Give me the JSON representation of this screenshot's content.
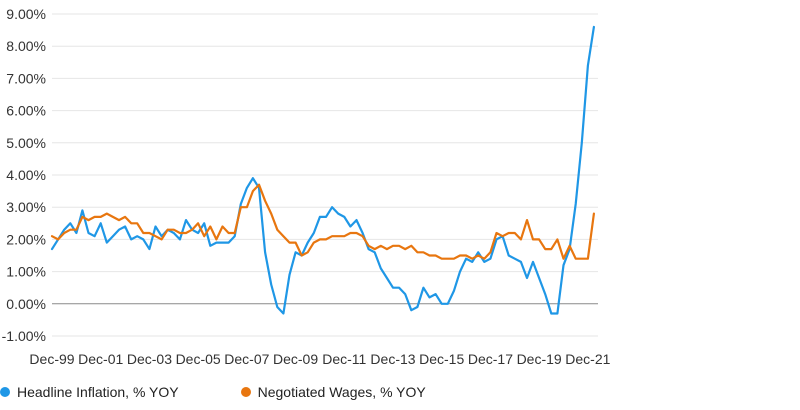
{
  "chart_data": {
    "type": "line",
    "title": "",
    "xlabel": "",
    "ylabel": "",
    "ylim": [
      -1.0,
      9.0
    ],
    "xlim": [
      "1999-12",
      "2022-05"
    ],
    "y_ticks": [
      "-1.00%",
      "0.00%",
      "1.00%",
      "2.00%",
      "3.00%",
      "4.00%",
      "5.00%",
      "6.00%",
      "7.00%",
      "8.00%",
      "9.00%"
    ],
    "x_ticks": [
      "Dec-99",
      "Dec-01",
      "Dec-03",
      "Dec-05",
      "Dec-07",
      "Dec-09",
      "Dec-11",
      "Dec-13",
      "Dec-15",
      "Dec-17",
      "Dec-19",
      "Dec-21"
    ],
    "grid": "horizontal",
    "legend": "bottom",
    "colors": {
      "inflation": "#1f97e6",
      "wages": "#e8760f"
    },
    "series": [
      {
        "name": "Headline Inflation, % YOY",
        "color": "#1f97e6",
        "points": [
          [
            "1999-12",
            1.7
          ],
          [
            "2000-03",
            2.0
          ],
          [
            "2000-06",
            2.3
          ],
          [
            "2000-09",
            2.5
          ],
          [
            "2000-12",
            2.2
          ],
          [
            "2001-03",
            2.9
          ],
          [
            "2001-06",
            2.2
          ],
          [
            "2001-09",
            2.1
          ],
          [
            "2001-12",
            2.5
          ],
          [
            "2002-03",
            1.9
          ],
          [
            "2002-06",
            2.1
          ],
          [
            "2002-09",
            2.3
          ],
          [
            "2002-12",
            2.4
          ],
          [
            "2003-03",
            2.0
          ],
          [
            "2003-06",
            2.1
          ],
          [
            "2003-09",
            2.0
          ],
          [
            "2003-12",
            1.7
          ],
          [
            "2004-03",
            2.4
          ],
          [
            "2004-06",
            2.1
          ],
          [
            "2004-09",
            2.3
          ],
          [
            "2004-12",
            2.2
          ],
          [
            "2005-03",
            2.0
          ],
          [
            "2005-06",
            2.6
          ],
          [
            "2005-09",
            2.3
          ],
          [
            "2005-12",
            2.2
          ],
          [
            "2006-03",
            2.5
          ],
          [
            "2006-06",
            1.8
          ],
          [
            "2006-09",
            1.9
          ],
          [
            "2006-12",
            1.9
          ],
          [
            "2007-03",
            1.9
          ],
          [
            "2007-06",
            2.1
          ],
          [
            "2007-09",
            3.1
          ],
          [
            "2007-12",
            3.6
          ],
          [
            "2008-03",
            3.9
          ],
          [
            "2008-06",
            3.6
          ],
          [
            "2008-09",
            1.6
          ],
          [
            "2008-12",
            0.6
          ],
          [
            "2009-03",
            -0.1
          ],
          [
            "2009-06",
            -0.3
          ],
          [
            "2009-09",
            0.9
          ],
          [
            "2009-12",
            1.6
          ],
          [
            "2010-03",
            1.5
          ],
          [
            "2010-06",
            1.9
          ],
          [
            "2010-09",
            2.2
          ],
          [
            "2010-12",
            2.7
          ],
          [
            "2011-03",
            2.7
          ],
          [
            "2011-06",
            3.0
          ],
          [
            "2011-09",
            2.8
          ],
          [
            "2011-12",
            2.7
          ],
          [
            "2012-03",
            2.4
          ],
          [
            "2012-06",
            2.6
          ],
          [
            "2012-09",
            2.2
          ],
          [
            "2012-12",
            1.7
          ],
          [
            "2013-03",
            1.6
          ],
          [
            "2013-06",
            1.1
          ],
          [
            "2013-09",
            0.8
          ],
          [
            "2013-12",
            0.5
          ],
          [
            "2014-03",
            0.5
          ],
          [
            "2014-06",
            0.3
          ],
          [
            "2014-09",
            -0.2
          ],
          [
            "2014-12",
            -0.1
          ],
          [
            "2015-03",
            0.5
          ],
          [
            "2015-06",
            0.2
          ],
          [
            "2015-09",
            0.3
          ],
          [
            "2015-12",
            0.0
          ],
          [
            "2016-03",
            0.0
          ],
          [
            "2016-06",
            0.4
          ],
          [
            "2016-09",
            1.0
          ],
          [
            "2016-12",
            1.4
          ],
          [
            "2017-03",
            1.3
          ],
          [
            "2017-06",
            1.6
          ],
          [
            "2017-09",
            1.3
          ],
          [
            "2017-12",
            1.4
          ],
          [
            "2018-03",
            2.0
          ],
          [
            "2018-06",
            2.1
          ],
          [
            "2018-09",
            1.5
          ],
          [
            "2018-12",
            1.4
          ],
          [
            "2019-03",
            1.3
          ],
          [
            "2019-06",
            0.8
          ],
          [
            "2019-09",
            1.3
          ],
          [
            "2019-12",
            0.8
          ],
          [
            "2020-03",
            0.3
          ],
          [
            "2020-06",
            -0.3
          ],
          [
            "2020-09",
            -0.3
          ],
          [
            "2020-12",
            1.2
          ],
          [
            "2021-03",
            1.7
          ],
          [
            "2021-06",
            3.1
          ],
          [
            "2021-09",
            5.0
          ],
          [
            "2021-12",
            7.4
          ],
          [
            "2022-03",
            8.6
          ]
        ]
      },
      {
        "name": "Negotiated Wages, % YOY",
        "color": "#e8760f",
        "points": [
          [
            "1999-12",
            2.1
          ],
          [
            "2000-03",
            2.0
          ],
          [
            "2000-06",
            2.2
          ],
          [
            "2000-09",
            2.3
          ],
          [
            "2000-12",
            2.3
          ],
          [
            "2001-03",
            2.7
          ],
          [
            "2001-06",
            2.6
          ],
          [
            "2001-09",
            2.7
          ],
          [
            "2001-12",
            2.7
          ],
          [
            "2002-03",
            2.8
          ],
          [
            "2002-06",
            2.7
          ],
          [
            "2002-09",
            2.6
          ],
          [
            "2002-12",
            2.7
          ],
          [
            "2003-03",
            2.5
          ],
          [
            "2003-06",
            2.5
          ],
          [
            "2003-09",
            2.2
          ],
          [
            "2003-12",
            2.2
          ],
          [
            "2004-03",
            2.1
          ],
          [
            "2004-06",
            2.0
          ],
          [
            "2004-09",
            2.3
          ],
          [
            "2004-12",
            2.3
          ],
          [
            "2005-03",
            2.2
          ],
          [
            "2005-06",
            2.2
          ],
          [
            "2005-09",
            2.3
          ],
          [
            "2005-12",
            2.5
          ],
          [
            "2006-03",
            2.1
          ],
          [
            "2006-06",
            2.4
          ],
          [
            "2006-09",
            2.0
          ],
          [
            "2006-12",
            2.4
          ],
          [
            "2007-03",
            2.2
          ],
          [
            "2007-06",
            2.2
          ],
          [
            "2007-09",
            3.0
          ],
          [
            "2007-12",
            3.0
          ],
          [
            "2008-03",
            3.5
          ],
          [
            "2008-06",
            3.7
          ],
          [
            "2008-09",
            3.2
          ],
          [
            "2008-12",
            2.8
          ],
          [
            "2009-03",
            2.3
          ],
          [
            "2009-06",
            2.1
          ],
          [
            "2009-09",
            1.9
          ],
          [
            "2009-12",
            1.9
          ],
          [
            "2010-03",
            1.5
          ],
          [
            "2010-06",
            1.6
          ],
          [
            "2010-09",
            1.9
          ],
          [
            "2010-12",
            2.0
          ],
          [
            "2011-03",
            2.0
          ],
          [
            "2011-06",
            2.1
          ],
          [
            "2011-09",
            2.1
          ],
          [
            "2011-12",
            2.1
          ],
          [
            "2012-03",
            2.2
          ],
          [
            "2012-06",
            2.2
          ],
          [
            "2012-09",
            2.1
          ],
          [
            "2012-12",
            1.8
          ],
          [
            "2013-03",
            1.7
          ],
          [
            "2013-06",
            1.8
          ],
          [
            "2013-09",
            1.7
          ],
          [
            "2013-12",
            1.8
          ],
          [
            "2014-03",
            1.8
          ],
          [
            "2014-06",
            1.7
          ],
          [
            "2014-09",
            1.8
          ],
          [
            "2014-12",
            1.6
          ],
          [
            "2015-03",
            1.6
          ],
          [
            "2015-06",
            1.5
          ],
          [
            "2015-09",
            1.5
          ],
          [
            "2015-12",
            1.4
          ],
          [
            "2016-03",
            1.4
          ],
          [
            "2016-06",
            1.4
          ],
          [
            "2016-09",
            1.5
          ],
          [
            "2016-12",
            1.5
          ],
          [
            "2017-03",
            1.4
          ],
          [
            "2017-06",
            1.5
          ],
          [
            "2017-09",
            1.4
          ],
          [
            "2017-12",
            1.6
          ],
          [
            "2018-03",
            2.2
          ],
          [
            "2018-06",
            2.1
          ],
          [
            "2018-09",
            2.2
          ],
          [
            "2018-12",
            2.2
          ],
          [
            "2019-03",
            2.0
          ],
          [
            "2019-06",
            2.6
          ],
          [
            "2019-09",
            2.0
          ],
          [
            "2019-12",
            2.0
          ],
          [
            "2020-03",
            1.7
          ],
          [
            "2020-06",
            1.7
          ],
          [
            "2020-09",
            2.0
          ],
          [
            "2020-12",
            1.4
          ],
          [
            "2021-03",
            1.8
          ],
          [
            "2021-06",
            1.4
          ],
          [
            "2021-09",
            1.4
          ],
          [
            "2021-12",
            1.4
          ],
          [
            "2022-03",
            2.8
          ]
        ]
      }
    ]
  }
}
